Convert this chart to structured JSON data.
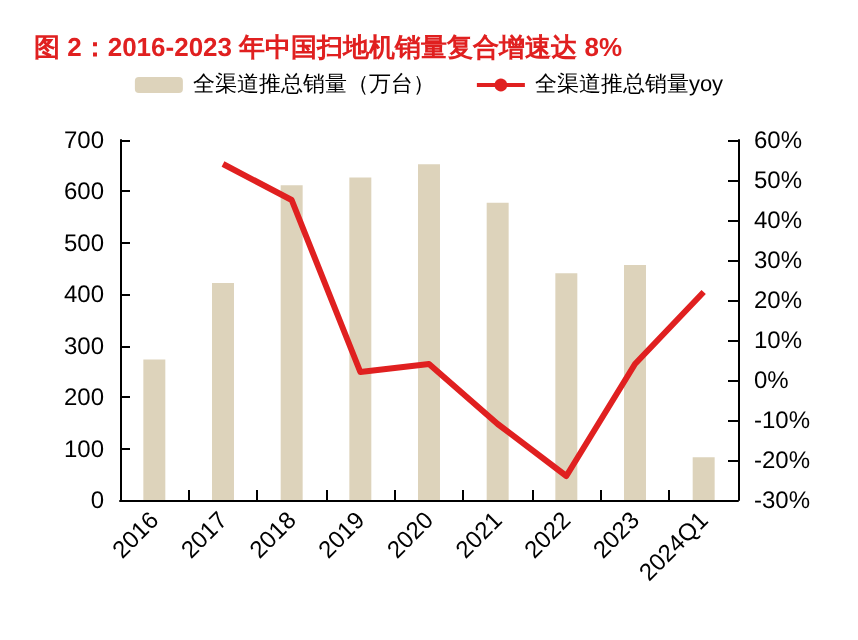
{
  "chart_data": {
    "type": "bar",
    "title": "图 2：2016-2023 年中国扫地机销量复合增速达 8%",
    "categories": [
      "2016",
      "2017",
      "2018",
      "2019",
      "2020",
      "2021",
      "2022",
      "2023",
      "2024Q1"
    ],
    "series": [
      {
        "name": "全渠道推总销量（万台）",
        "color": "#ddd3bb",
        "values": [
          273,
          422,
          612,
          627,
          653,
          578,
          441,
          457,
          83
        ]
      },
      {
        "name": "全渠道推总销量yoy",
        "type": "line",
        "axis": "y2",
        "color": "#e02020",
        "values": [
          null,
          54,
          45,
          2,
          4,
          -11,
          -24,
          4,
          22
        ]
      }
    ],
    "ylim": [
      0,
      700
    ],
    "yticks": [
      0,
      100,
      200,
      300,
      400,
      500,
      600,
      700
    ],
    "y2lim": [
      -30,
      60
    ],
    "y2ticks": [
      {
        "value": -30,
        "label": "-30%"
      },
      {
        "value": -20,
        "label": "-20%"
      },
      {
        "value": -10,
        "label": "-10%"
      },
      {
        "value": 0,
        "label": "0%"
      },
      {
        "value": 10,
        "label": "10%"
      },
      {
        "value": 20,
        "label": "20%"
      },
      {
        "value": 30,
        "label": "30%"
      },
      {
        "value": 40,
        "label": "40%"
      },
      {
        "value": 50,
        "label": "50%"
      },
      {
        "value": 60,
        "label": "60%"
      }
    ],
    "grid": false,
    "legend": "top",
    "marker": "none",
    "line_style": "solid"
  }
}
